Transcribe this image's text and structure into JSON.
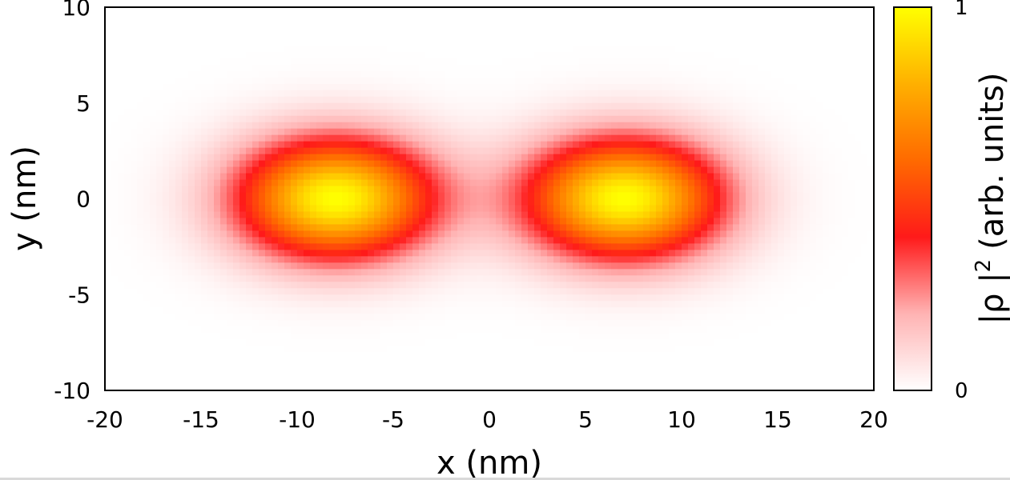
{
  "chart_data": {
    "type": "heatmap",
    "xlabel": "x (nm)",
    "ylabel": "y (nm)",
    "colorbar_label": "|ρ |²",
    "colorbar_label_base": "|ρ |",
    "colorbar_label_sup": "2",
    "colorbar_label_unit": "(arb. units)",
    "xlim": [
      -20,
      20
    ],
    "ylim": [
      -10,
      10
    ],
    "clim": [
      0,
      1
    ],
    "x_ticks": [
      -20,
      -15,
      -10,
      -5,
      0,
      5,
      10,
      15,
      20
    ],
    "y_ticks": [
      -10,
      -5,
      0,
      5,
      10
    ],
    "colorbar_ticks": [
      0,
      1
    ],
    "colormap": [
      "#ffffff",
      "#ffb3b3",
      "#ff1a1a",
      "#ff6a00",
      "#ffb000",
      "#ffff00"
    ],
    "peaks": [
      {
        "x": -8,
        "y": 0,
        "value": 1.0
      },
      {
        "x": 7,
        "y": 0,
        "value": 1.0
      }
    ],
    "grid": false
  }
}
